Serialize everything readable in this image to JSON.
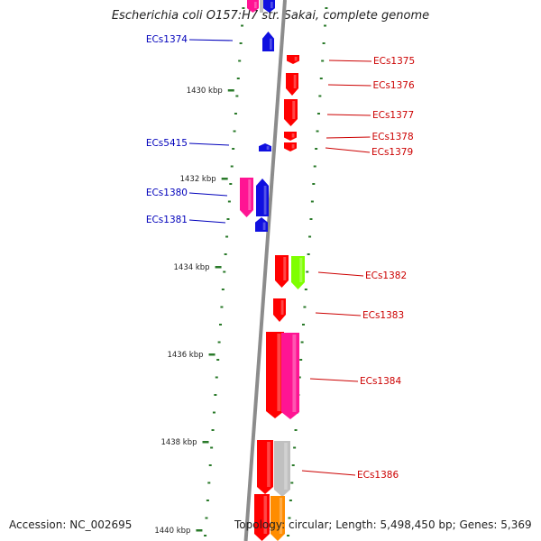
{
  "title": "Escherichia coli O157:H7 str. Sakai, complete genome",
  "footer": {
    "accession": "Accession: NC_002695",
    "summary": "Topology: circular; Length: 5,498,450 bp; Genes: 5,369"
  },
  "colors": {
    "backbone": "#8c8c8c",
    "tick": "#2a7a2a",
    "left_label": "#0000bb",
    "right_label": "#cc0000",
    "blue": "#1010e0",
    "red": "#ff0000",
    "pink": "#ff1493",
    "lime": "#7fff00",
    "gray": "#c0c0c0",
    "orange": "#ff8c00"
  },
  "kbp_ticks": [
    "1430 kbp",
    "1432 kbp",
    "1434 kbp",
    "1436 kbp",
    "1438 kbp",
    "1440 kbp"
  ],
  "left_genes": [
    "ECs1374",
    "ECs5415",
    "ECs1380",
    "ECs1381"
  ],
  "right_genes": [
    "ECs1375",
    "ECs1376",
    "ECs1377",
    "ECs1378",
    "ECs1379",
    "ECs1382",
    "ECs1383",
    "ECs1384",
    "ECs1386"
  ]
}
